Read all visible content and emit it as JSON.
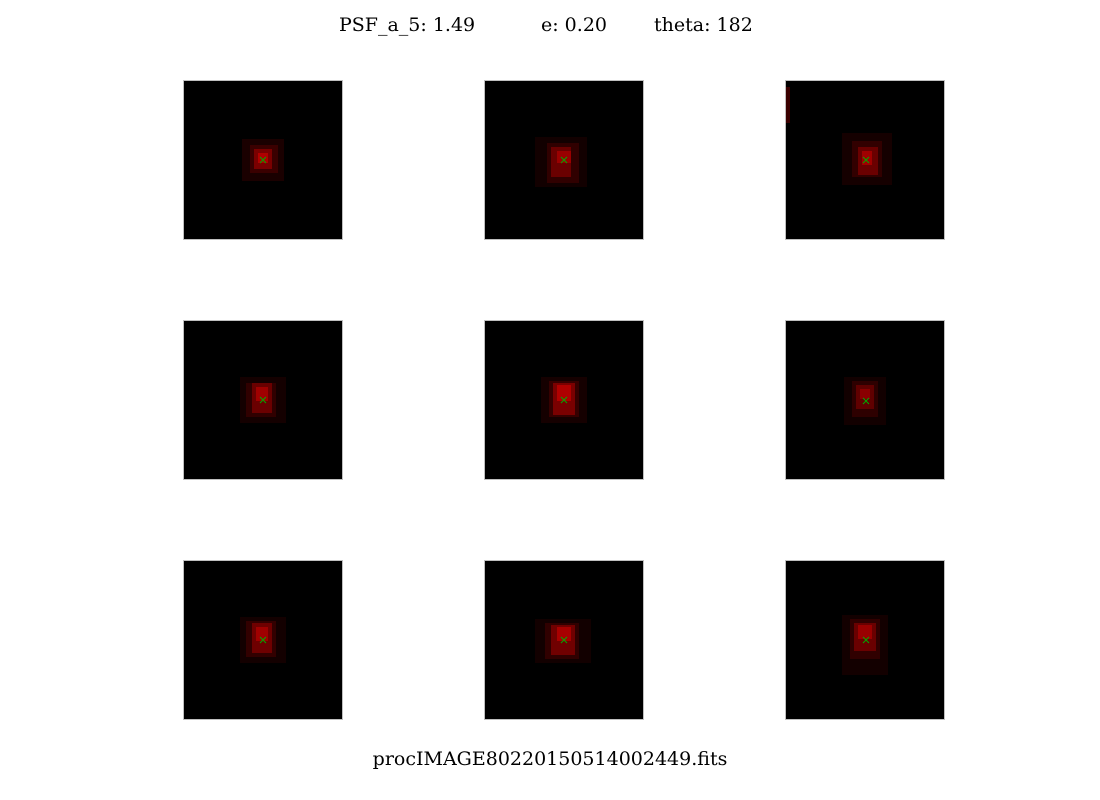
{
  "header": {
    "psf_a_5": "PSF_a_5: 1.49",
    "e": "e: 0.20",
    "theta": "theta: 182"
  },
  "footer": {
    "filename": "procIMAGE80220150514002449.fits"
  },
  "colors": {
    "background": "#000000",
    "psf_core": "#8b0000",
    "psf_halo": "#3a0000",
    "center_marker": "#00aa00",
    "panel_border": "#bfbfbf"
  },
  "grid": {
    "rows": 3,
    "cols": 3,
    "panel_count": 9
  }
}
